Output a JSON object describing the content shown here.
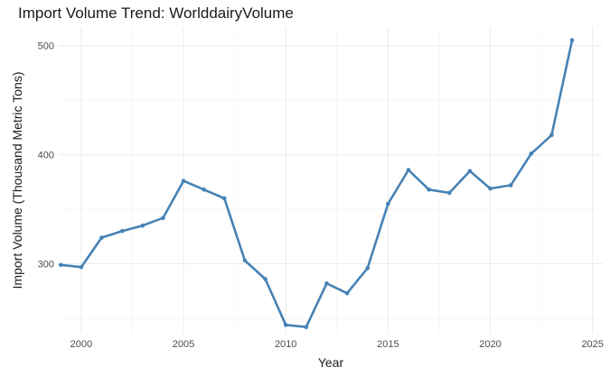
{
  "chart_data": {
    "type": "line",
    "title": "Import Volume Trend: WorlddairyVolume",
    "xlabel": "Year",
    "ylabel": "Import Volume (Thousand Metric Tons)",
    "xlim": [
      1998.9,
      2025.5
    ],
    "ylim": [
      236,
      517
    ],
    "x_ticks": [
      "2000",
      "2005",
      "2010",
      "2015",
      "2020",
      "2025"
    ],
    "y_ticks": [
      "300",
      "400",
      "500"
    ],
    "grid": true,
    "line_color": "#4682B4",
    "x": [
      1999,
      2000,
      2001,
      2002,
      2003,
      2004,
      2005,
      2006,
      2007,
      2008,
      2009,
      2010,
      2011,
      2012,
      2013,
      2014,
      2015,
      2016,
      2017,
      2018,
      2019,
      2020,
      2021,
      2022,
      2023,
      2024
    ],
    "values": [
      299,
      297,
      324,
      330,
      335,
      342,
      376,
      368,
      360,
      303,
      286,
      244,
      242,
      282,
      273,
      296,
      355,
      386,
      368,
      365,
      385,
      369,
      372,
      401,
      418,
      505
    ]
  }
}
